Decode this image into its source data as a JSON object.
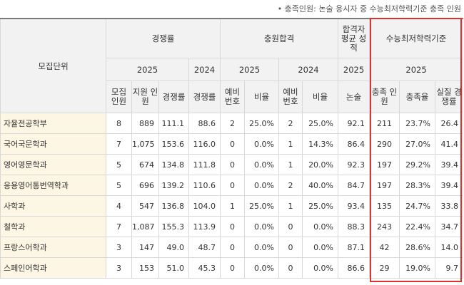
{
  "note": "• 충족인원: 논술 응시자 중 수능최저학력기준 충족 인원",
  "headers": {
    "unit": "모집단위",
    "competition": "경쟁률",
    "additional": "충원합격",
    "avg_grade": "합격자 평균 성적",
    "min_standard": "수능최저학력기준",
    "y2025": "2025",
    "y2024": "2024",
    "recruit": "모집 인원",
    "applicants": "지원 인원",
    "ratio": "경쟁률",
    "ratio2024": "경쟁률",
    "reserve2025": "예비 번호",
    "rate2025": "비율",
    "reserve2024": "예비 번호",
    "rate2024": "비율",
    "essay": "논술",
    "met": "충족 인원",
    "met_rate": "충족율",
    "real_ratio": "실질 경쟁률"
  },
  "rows": [
    {
      "unit": "자율전공학부",
      "recruit": "8",
      "applicants": "889",
      "ratio": "111.1",
      "ratio2024": "88.6",
      "reserve2025": "2",
      "rate2025": "25.0%",
      "reserve2024": "2",
      "rate2024": "25.0%",
      "essay": "92.1",
      "met": "211",
      "met_rate": "23.7%",
      "real_ratio": "26.4"
    },
    {
      "unit": "국어국문학과",
      "recruit": "7",
      "applicants": "1,075",
      "ratio": "153.6",
      "ratio2024": "116.0",
      "reserve2025": "0",
      "rate2025": "0.0%",
      "reserve2024": "1",
      "rate2024": "14.3%",
      "essay": "86.4",
      "met": "290",
      "met_rate": "27.0%",
      "real_ratio": "41.4"
    },
    {
      "unit": "영어영문학과",
      "recruit": "5",
      "applicants": "674",
      "ratio": "134.8",
      "ratio2024": "111.8",
      "reserve2025": "0",
      "rate2025": "0.0%",
      "reserve2024": "1",
      "rate2024": "20.0%",
      "essay": "92.3",
      "met": "197",
      "met_rate": "29.2%",
      "real_ratio": "39.4"
    },
    {
      "unit": "응용영어통번역학과",
      "recruit": "5",
      "applicants": "696",
      "ratio": "139.2",
      "ratio2024": "110.6",
      "reserve2025": "0",
      "rate2025": "0.0%",
      "reserve2024": "2",
      "rate2024": "40.0%",
      "essay": "84.7",
      "met": "197",
      "met_rate": "28.3%",
      "real_ratio": "39.4"
    },
    {
      "unit": "사학과",
      "recruit": "4",
      "applicants": "547",
      "ratio": "136.8",
      "ratio2024": "104.0",
      "reserve2025": "1",
      "rate2025": "25.0%",
      "reserve2024": "1",
      "rate2024": "25.0%",
      "essay": "93.4",
      "met": "135",
      "met_rate": "24.7%",
      "real_ratio": "33.8"
    },
    {
      "unit": "철학과",
      "recruit": "7",
      "applicants": "1,087",
      "ratio": "155.3",
      "ratio2024": "113.9",
      "reserve2025": "0",
      "rate2025": "0.0%",
      "reserve2024": "0",
      "rate2024": "0.0%",
      "essay": "88.3",
      "met": "243",
      "met_rate": "22.4%",
      "real_ratio": "34.7"
    },
    {
      "unit": "프랑스어학과",
      "recruit": "3",
      "applicants": "147",
      "ratio": "49.0",
      "ratio2024": "48.7",
      "reserve2025": "0",
      "rate2025": "0.0%",
      "reserve2024": "0",
      "rate2024": "0.0%",
      "essay": "87.1",
      "met": "42",
      "met_rate": "28.6%",
      "real_ratio": "14.0"
    },
    {
      "unit": "스페인어학과",
      "recruit": "3",
      "applicants": "153",
      "ratio": "51.0",
      "ratio2024": "45.3",
      "reserve2025": "0",
      "rate2025": "0.0%",
      "reserve2024": "0",
      "rate2024": "0.0%",
      "essay": "86.6",
      "met": "29",
      "met_rate": "19.0%",
      "real_ratio": "9.7"
    }
  ]
}
